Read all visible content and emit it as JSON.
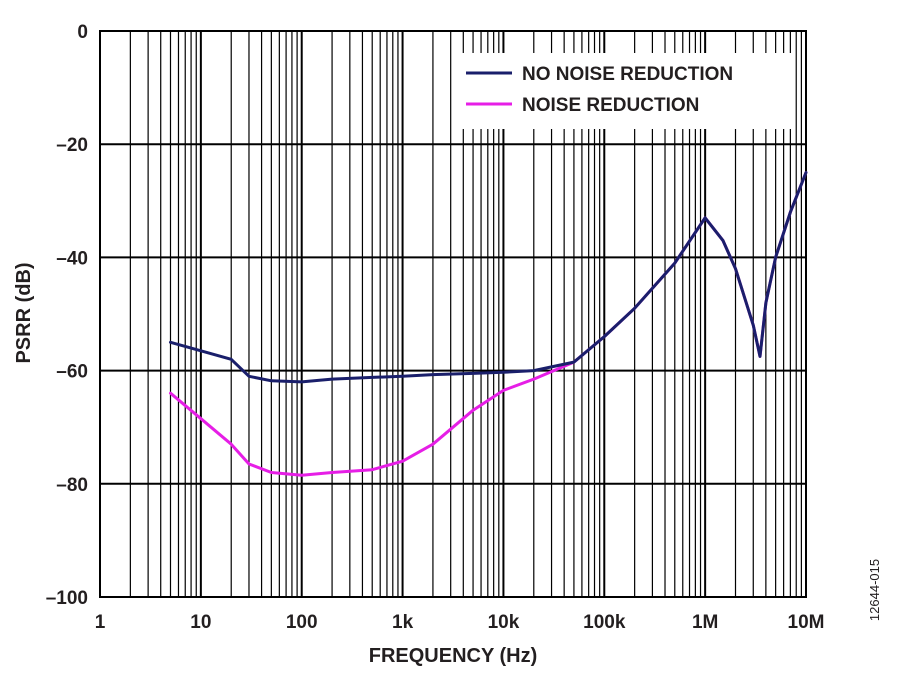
{
  "chart_data": {
    "type": "line",
    "xlabel": "FREQUENCY (Hz)",
    "ylabel": "PSRR (dB)",
    "xscale": "log",
    "xlim": [
      1,
      10000000
    ],
    "ylim": [
      -100,
      0
    ],
    "grid": true,
    "legend_position": "top-right",
    "x_tick_labels": [
      "1",
      "10",
      "100",
      "1k",
      "10k",
      "100k",
      "1M",
      "10M"
    ],
    "y_tick_labels": [
      "0",
      "–20",
      "–40",
      "–60",
      "–80",
      "–100"
    ],
    "y_ticks": [
      0,
      -20,
      -40,
      -60,
      -80,
      -100
    ],
    "x": [
      5,
      10,
      20,
      30,
      50,
      100,
      200,
      500,
      1000,
      2000,
      5000,
      10000,
      20000,
      50000,
      100000,
      200000,
      500000,
      1000000,
      1500000,
      2000000,
      3000000,
      3500000,
      4000000,
      5000000,
      7000000,
      10000000
    ],
    "series": [
      {
        "name": "NO NOISE REDUCTION",
        "color": "#1a1f6b",
        "values": [
          -55,
          -56.5,
          -58,
          -61,
          -61.8,
          -62,
          -61.5,
          -61.2,
          -61,
          -60.7,
          -60.5,
          -60.3,
          -60,
          -58.5,
          -54,
          -49,
          -41,
          -33,
          -37,
          -42,
          -52,
          -57.5,
          -48,
          -40,
          -32,
          -25
        ]
      },
      {
        "name": "NOISE REDUCTION",
        "color": "#e61ee6",
        "values": [
          -64,
          -68.5,
          -73,
          -76.5,
          -78,
          -78.5,
          -78,
          -77.5,
          -76,
          -73,
          -67,
          -63.5,
          -61.5,
          -58.5,
          -54,
          -49,
          -41,
          -33,
          -37,
          -42,
          -52,
          -57.5,
          -48,
          -40,
          -32,
          -25
        ]
      }
    ]
  },
  "figure_id": "12644-015"
}
